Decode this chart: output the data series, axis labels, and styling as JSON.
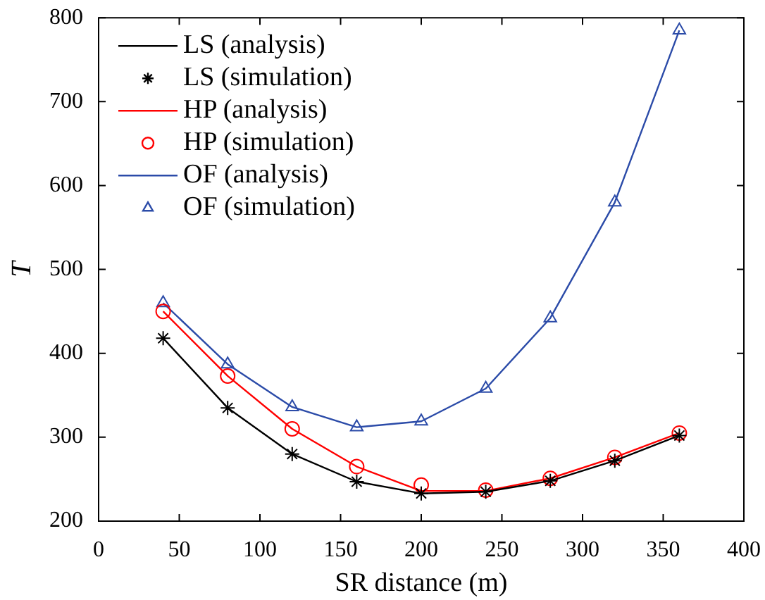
{
  "chart_data": {
    "type": "line",
    "xlabel": "SR distance (m)",
    "ylabel": "T",
    "xlim": [
      0,
      400
    ],
    "xticks": [
      0,
      50,
      100,
      150,
      200,
      250,
      300,
      350,
      400
    ],
    "ylim": [
      200,
      800
    ],
    "yticks": [
      200,
      300,
      400,
      500,
      600,
      700,
      800
    ],
    "grid": false,
    "legend": "top left",
    "x": [
      40,
      80,
      120,
      160,
      200,
      240,
      280,
      320,
      360
    ],
    "series": [
      {
        "name": "LS (analysis)",
        "marker": "none",
        "line_style": "solid",
        "color": "#000000",
        "values": [
          418,
          335,
          280,
          247,
          233,
          235,
          248,
          272,
          302
        ]
      },
      {
        "name": "LS (simulation)",
        "type": "scatter",
        "marker": "cross",
        "color": "#000000",
        "values": [
          418,
          335,
          280,
          247,
          233,
          235,
          248,
          272,
          302
        ]
      },
      {
        "name": "HP (analysis)",
        "marker": "none",
        "line_style": "solid",
        "color": "#ff0000",
        "values": [
          450,
          373,
          310,
          265,
          236,
          236,
          251,
          276,
          305
        ]
      },
      {
        "name": "HP (simulation)",
        "type": "scatter",
        "marker": "circle",
        "color": "#ff0000",
        "values": [
          450,
          373,
          310,
          265,
          243,
          237,
          251,
          276,
          305
        ]
      },
      {
        "name": "OF (analysis)",
        "marker": "none",
        "line_style": "solid",
        "color": "#2b4ba8",
        "values": [
          460,
          387,
          336,
          312,
          319,
          358,
          442,
          580,
          785
        ]
      },
      {
        "name": "OF (simulation)",
        "type": "scatter",
        "marker": "triangle",
        "color": "#2b4ba8",
        "values": [
          460,
          387,
          336,
          312,
          319,
          358,
          442,
          580,
          785
        ]
      }
    ]
  }
}
